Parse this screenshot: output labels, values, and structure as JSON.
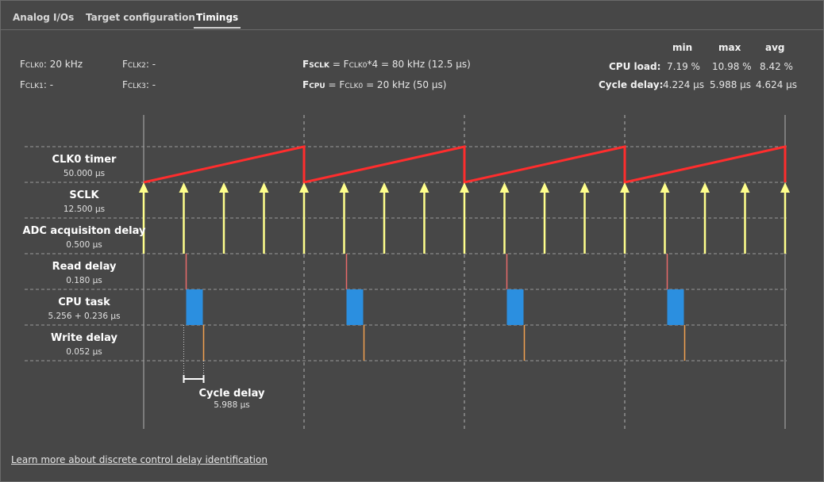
{
  "tabs": [
    {
      "label": "Analog I/Os",
      "active": false
    },
    {
      "label": "Target configuration",
      "active": false
    },
    {
      "label": "Timings",
      "active": true
    }
  ],
  "clocks": {
    "fclk0": {
      "name": "F",
      "sub": "CLK0",
      "value": ": 20 kHz"
    },
    "fclk1": {
      "name": "F",
      "sub": "CLK1",
      "value": ": -"
    },
    "fclk2": {
      "name": "F",
      "sub": "CLK2",
      "value": ": -"
    },
    "fclk3": {
      "name": "F",
      "sub": "CLK3",
      "value": ": -"
    }
  },
  "formulas": {
    "fsclk": {
      "lhs": "F",
      "lhs_sub": "SCLK",
      "eq": " = F",
      "rhs_sub": "CLK0",
      "rest": "*4 = 80 kHz (12.5 µs)"
    },
    "fcpu": {
      "lhs": "F",
      "lhs_sub": "CPU",
      "eq": " = F",
      "rhs_sub": "CLK0",
      "rest": " = 20 kHz (50 µs)"
    }
  },
  "stats": {
    "headers": [
      "min",
      "max",
      "avg"
    ],
    "rows": [
      {
        "label": "CPU load:",
        "values": [
          "7.19 %",
          "10.98 %",
          "8.42 %"
        ]
      },
      {
        "label": "Cycle delay:",
        "values": [
          "4.224 µs",
          "5.988 µs",
          "4.624 µs"
        ]
      }
    ]
  },
  "rows": [
    {
      "label": "CLK0 timer",
      "value": "50.000 µs"
    },
    {
      "label": "SCLK",
      "value": "12.500 µs"
    },
    {
      "label": "ADC acquisiton delay",
      "value": "0.500 µs"
    },
    {
      "label": "Read delay",
      "value": "0.180 µs"
    },
    {
      "label": "CPU task",
      "value": "5.256 + 0.236 µs"
    },
    {
      "label": "Write delay",
      "value": "0.052 µs"
    }
  ],
  "cycle_delay": {
    "label": "Cycle delay",
    "value": "5.988 µs"
  },
  "link": "Learn more about discrete control delay identification",
  "colors": {
    "ramp": "#ff2d2d",
    "arrow": "#ffff8c",
    "read": "#e86a6a",
    "cpu": "#2b8fe0",
    "write": "#f0a050",
    "grid": "#9a9a9a"
  }
}
